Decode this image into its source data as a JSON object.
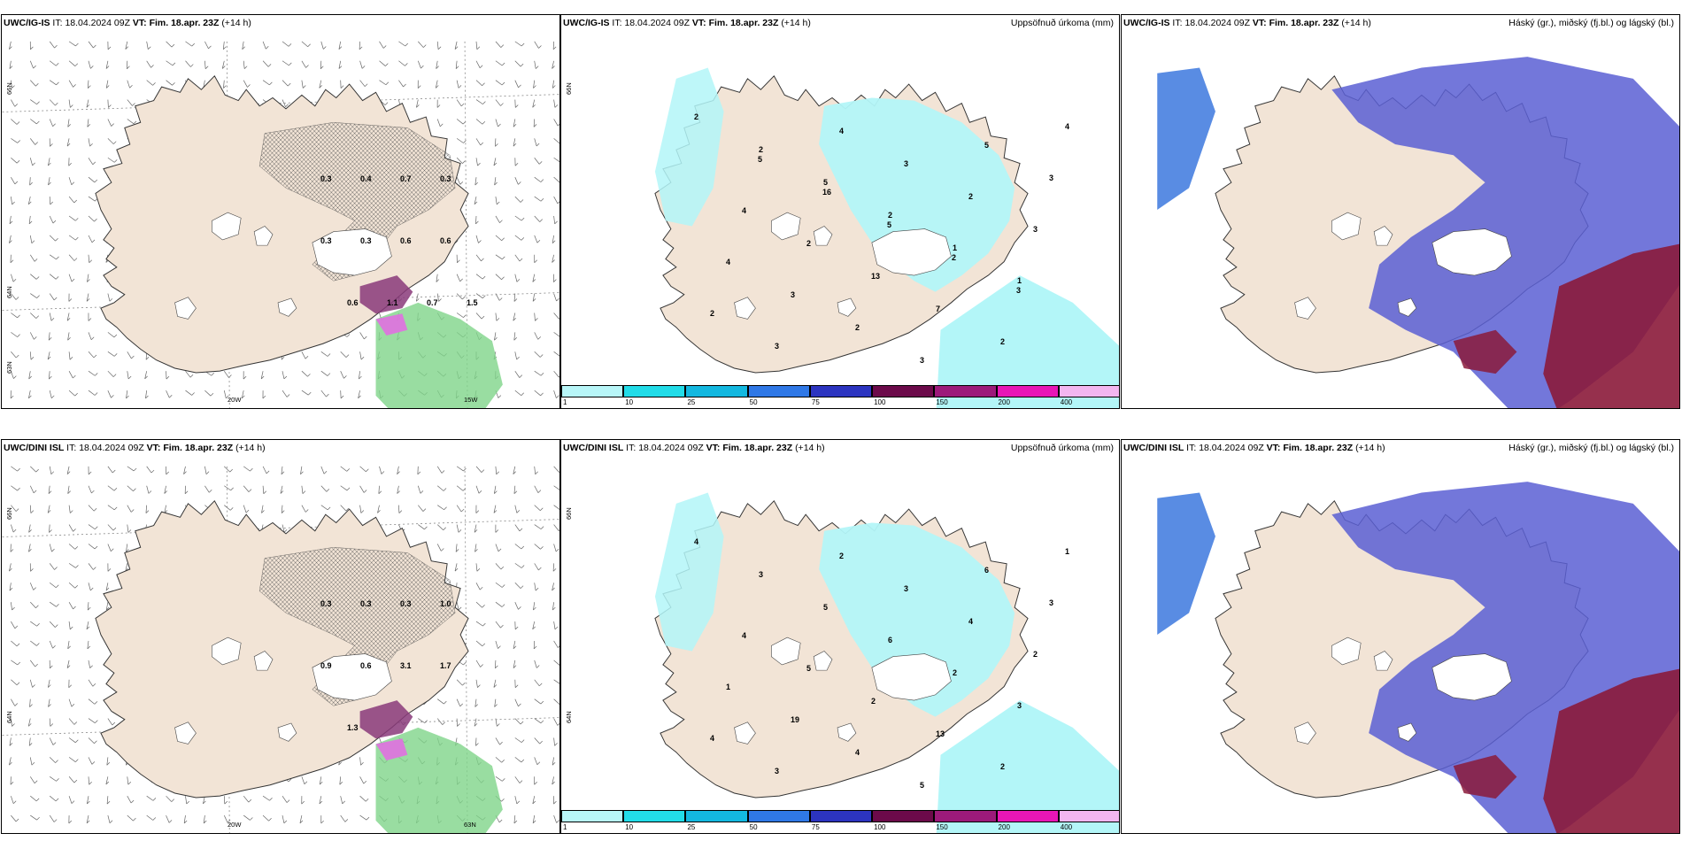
{
  "colors": {
    "land": "#f2e4d6",
    "precip_light": "#b3f6f8",
    "precip_mid": "#7ae7f0",
    "cloud_high": "#2f6fdc",
    "cloud_mid": "#5a5fd4",
    "cloud_low": "#8b1a3a",
    "green": "#7fd48a",
    "purple": "#8a3a7a",
    "pink": "#e070e0"
  },
  "scale": {
    "colors": [
      "#b8f6f8",
      "#22dce8",
      "#13b8e0",
      "#2f78e6",
      "#2c34c0",
      "#6c0a4a",
      "#9c1a7a",
      "#e816b6",
      "#f3b6f0"
    ],
    "ticks": [
      "1",
      "10",
      "25",
      "50",
      "75",
      "100",
      "150",
      "200",
      "400"
    ]
  },
  "panels": [
    {
      "id": "ig-wind",
      "model": "UWC/IG-IS",
      "it_label": "IT:",
      "it_value": "18.04.2024 09Z",
      "vt_label": "VT:",
      "vt_value": "Fim. 18.apr. 23Z",
      "lead": "(+14 h)",
      "right_title": "",
      "grid_labels": [
        "66N",
        "64N",
        "20W",
        "15W",
        "63N"
      ],
      "values": [
        "0.3",
        "0.4",
        "0.7",
        "0.3",
        "0.3",
        "0.3",
        "0.6",
        "0.6",
        "0.6",
        "1.1",
        "0.7",
        "1.5"
      ]
    },
    {
      "id": "ig-precip",
      "model": "UWC/IG-IS",
      "it_label": "IT:",
      "it_value": "18.04.2024 09Z",
      "vt_label": "VT:",
      "vt_value": "Fim. 18.apr. 23Z",
      "lead": "(+14 h)",
      "right_title": "Uppsöfnuð úrkoma (mm)",
      "grid_labels": [
        "66N"
      ],
      "values": [
        "2",
        "2",
        "5",
        "2",
        "1",
        "1",
        "2",
        "3",
        "4",
        "3",
        "2",
        "3",
        "4",
        "3",
        "2",
        "3",
        "5",
        "3",
        "4",
        "2",
        "13",
        "7",
        "2",
        "4",
        "5",
        "16",
        "5",
        "2",
        "3"
      ]
    },
    {
      "id": "ig-cloud",
      "model": "UWC/IG-IS",
      "it_label": "IT:",
      "it_value": "18.04.2024 09Z",
      "vt_label": "VT:",
      "vt_value": "Fim. 18.apr. 23Z",
      "lead": "(+14 h)",
      "right_title": "Háský (gr.), miðský (fj.bl.) og lágský (bl.)",
      "grid_labels": [],
      "values": []
    },
    {
      "id": "dini-wind",
      "model": "UWC/DINI ISL",
      "it_label": "IT:",
      "it_value": "18.04.2024 09Z",
      "vt_label": "VT:",
      "vt_value": "Fim. 18.apr. 23Z",
      "lead": "(+14 h)",
      "right_title": "",
      "grid_labels": [
        "66N",
        "64N",
        "20W",
        "63N"
      ],
      "values": [
        "0.3",
        "0.3",
        "0.3",
        "1.0",
        "0.9",
        "0.6",
        "3.1",
        "1.7",
        "1.3"
      ]
    },
    {
      "id": "dini-precip",
      "model": "UWC/DINI ISL",
      "it_label": "IT:",
      "it_value": "18.04.2024 09Z",
      "vt_label": "VT:",
      "vt_value": "Fim. 18.apr. 23Z",
      "lead": "(+14 h)",
      "right_title": "Uppsöfnuð úrkoma (mm)",
      "grid_labels": [
        "66N",
        "64N"
      ],
      "values": [
        "4",
        "3",
        "5",
        "6",
        "2",
        "3",
        "4",
        "3",
        "2",
        "3",
        "4",
        "2",
        "1",
        "19",
        "4",
        "5",
        "6",
        "3",
        "4",
        "5",
        "2",
        "13",
        "2",
        "1"
      ]
    },
    {
      "id": "dini-cloud",
      "model": "UWC/DINI ISL",
      "it_label": "IT:",
      "it_value": "18.04.2024 09Z",
      "vt_label": "VT:",
      "vt_value": "Fim. 18.apr. 23Z",
      "lead": "(+14 h)",
      "right_title": "Háský (gr.), miðský (fj.bl.) og lágský (bl.)",
      "grid_labels": [],
      "values": []
    }
  ]
}
